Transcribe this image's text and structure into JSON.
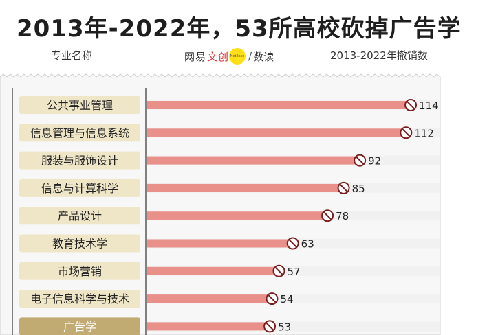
{
  "header": {
    "title": "2013年-2022年，53所高校砍掉广告学",
    "col_left_label": "专业名称",
    "col_right_label": "2013-2022年撤销数",
    "brand_prefix": "网易",
    "brand_word": "文创",
    "brand_badge": "NetEase",
    "brand_suffix": "数读"
  },
  "colors": {
    "bar": "#e9908b",
    "track": "#f1f1f1",
    "label_bg": "#efe6c8",
    "label_bg_highlight": "#c2ab72",
    "panel_bg": "#f7f7f7",
    "icon_stroke": "#7a1f1f"
  },
  "chart_data": {
    "type": "bar",
    "orientation": "horizontal",
    "title": "2013年-2022年，53所高校砍掉广告学",
    "xlabel": "2013-2022年撤销数",
    "ylabel": "专业名称",
    "categories": [
      "公共事业管理",
      "信息管理与信息系统",
      "服装与服饰设计",
      "信息与计算科学",
      "产品设计",
      "教育技术学",
      "市场营销",
      "电子信息科学与技术",
      "广告学"
    ],
    "values": [
      114,
      112,
      92,
      85,
      78,
      63,
      57,
      54,
      53
    ],
    "highlight": "广告学",
    "xlim": [
      0,
      125
    ]
  }
}
